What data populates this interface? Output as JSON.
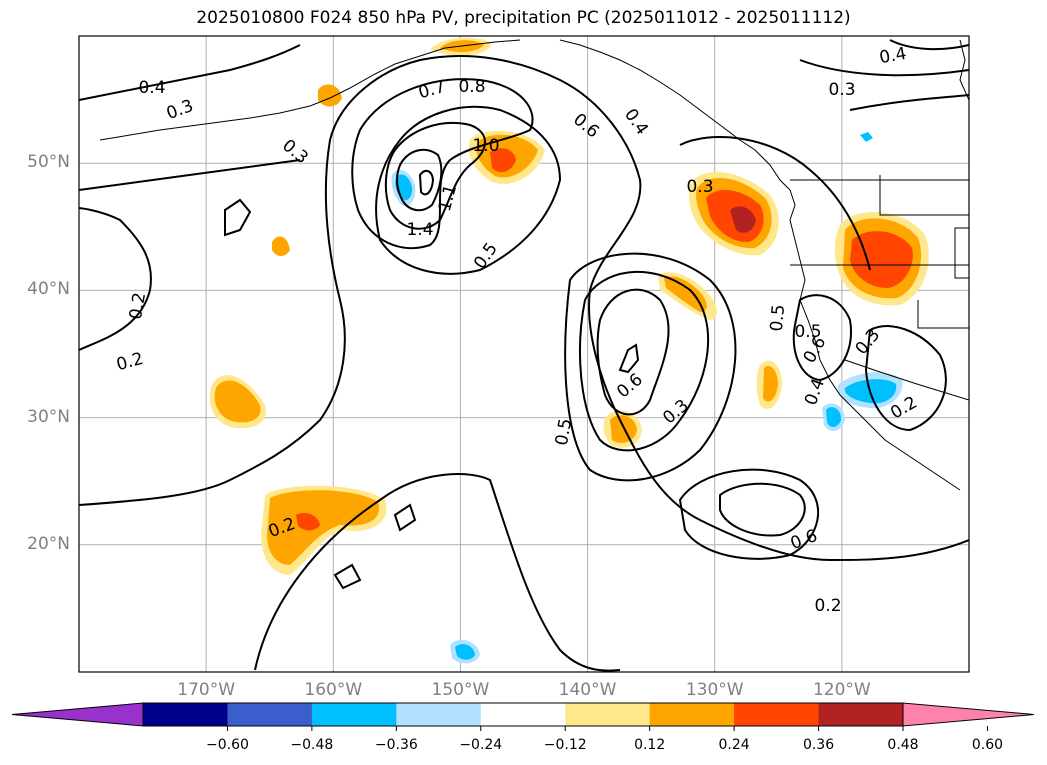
{
  "title": "2025010800 F024 850 hPa PV, precipitation PC (2025011012 - 2025011112)",
  "map": {
    "lon_range": [
      -180,
      -110
    ],
    "lat_range": [
      10,
      60
    ],
    "lat_ticks": [
      {
        "value": 50,
        "label": "50°N"
      },
      {
        "value": 40,
        "label": "40°N"
      },
      {
        "value": 30,
        "label": "30°N"
      },
      {
        "value": 20,
        "label": "20°N"
      }
    ],
    "lon_ticks": [
      {
        "value": -170,
        "label": "170°W"
      },
      {
        "value": -160,
        "label": "160°W"
      },
      {
        "value": -150,
        "label": "150°W"
      },
      {
        "value": -140,
        "label": "140°W"
      },
      {
        "value": -130,
        "label": "130°W"
      },
      {
        "value": -120,
        "label": "120°W"
      }
    ],
    "gridlines": true,
    "contour_labels": [
      "0.4",
      "0.3",
      "0.3",
      "0.2",
      "0.2",
      "0.7",
      "0.8",
      "1.0",
      "1.1",
      "1.4",
      "0.5",
      "0.6",
      "0.4",
      "0.3",
      "0.5",
      "0.6",
      "0.5",
      "0.3",
      "0.6",
      "0.2",
      "0.6",
      "0.3",
      "0.4",
      "0.2",
      "0.2",
      "0.5",
      "0.4",
      "0.3"
    ]
  },
  "colorbar": {
    "tick_labels": [
      "−0.60",
      "−0.48",
      "−0.36",
      "−0.24",
      "−0.12",
      "0.12",
      "0.24",
      "0.36",
      "0.48",
      "0.60"
    ],
    "colors": [
      "#9932cc",
      "#00008b",
      "#3a5fcd",
      "#00bfff",
      "#b0e2ff",
      "#ffffff",
      "#ffe78c",
      "#ffa500",
      "#ff4500",
      "#b22222",
      "#ff82ab"
    ]
  }
}
